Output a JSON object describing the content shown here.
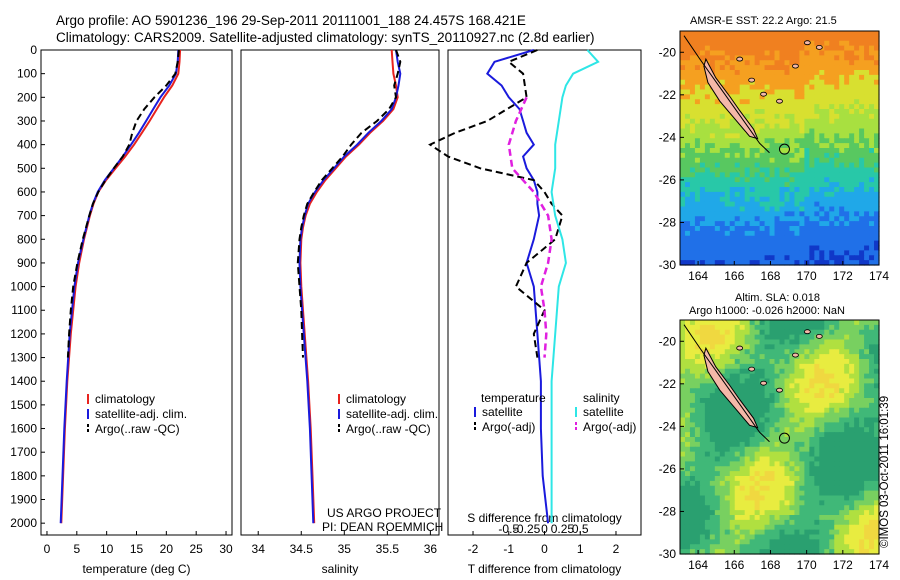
{
  "title": {
    "line1": "Argo profile: AO 5901236_196 29-Sep-2011 20111001_188 24.457S 168.421E",
    "line2": "Climatology: CARS2009. Satellite-adjusted climatology: synTS_20110927.nc (2.8d earlier)"
  },
  "footer": "©IMOS 03-Oct-2011 16:01:39",
  "colors": {
    "climatology": "#e8231e",
    "satellite": "#1a1adc",
    "argo": "#000000",
    "sat_sal": "#2ee6e6",
    "argo_sal": "#e020e0"
  },
  "chart_data": [
    {
      "type": "line",
      "name": "temperature-profile",
      "xlabel": "temperature (deg C)",
      "ylabel": "",
      "xlim": [
        -1,
        31
      ],
      "ylim": [
        0,
        2050
      ],
      "xticks": [
        "0",
        "5",
        "10",
        "15",
        "20",
        "25",
        "30"
      ],
      "yticks": [
        "0",
        "100",
        "200",
        "300",
        "400",
        "500",
        "600",
        "700",
        "800",
        "900",
        "1000",
        "1100",
        "1200",
        "1300",
        "1400",
        "1500",
        "1600",
        "1700",
        "1800",
        "1900",
        "2000"
      ],
      "legend": [
        "climatology",
        "satellite-adj. clim.",
        "Argo(..raw -QC)"
      ],
      "legend_position": "bottom-center",
      "series": [
        {
          "name": "climatology",
          "depth": [
            0,
            50,
            100,
            150,
            200,
            250,
            300,
            350,
            400,
            450,
            500,
            550,
            600,
            650,
            700,
            800,
            900,
            1000,
            1200,
            1400,
            1600,
            1800,
            2000
          ],
          "values": [
            22.3,
            22.2,
            22.0,
            21.0,
            19.6,
            18.4,
            17.2,
            15.9,
            14.6,
            13.1,
            11.5,
            9.9,
            8.6,
            7.8,
            7.2,
            6.2,
            5.4,
            4.8,
            4.0,
            3.4,
            3.0,
            2.7,
            2.4
          ]
        },
        {
          "name": "satellite-adj. clim.",
          "depth": [
            0,
            50,
            100,
            150,
            200,
            250,
            300,
            350,
            400,
            450,
            500,
            550,
            600,
            650,
            700,
            800,
            900,
            1000,
            1200,
            1400,
            1600,
            1800,
            2000
          ],
          "values": [
            22.0,
            21.9,
            21.6,
            20.5,
            19.0,
            17.8,
            16.6,
            15.4,
            14.1,
            12.7,
            11.2,
            9.7,
            8.5,
            7.7,
            7.1,
            6.1,
            5.2,
            4.6,
            3.8,
            3.3,
            2.9,
            2.6,
            2.3
          ]
        },
        {
          "name": "Argo(..raw -QC)",
          "depth": [
            0,
            50,
            100,
            150,
            200,
            250,
            300,
            350,
            400,
            450,
            500,
            550,
            600,
            650,
            700,
            800,
            900,
            1000,
            1100,
            1200,
            1300
          ],
          "values": [
            22.1,
            21.9,
            21.5,
            20.0,
            18.0,
            16.3,
            15.0,
            14.3,
            13.8,
            12.7,
            11.2,
            9.8,
            8.6,
            7.7,
            7.1,
            6.0,
            5.1,
            4.4,
            4.0,
            3.7,
            3.5
          ]
        }
      ],
      "annotations": []
    },
    {
      "type": "line",
      "name": "salinity-profile",
      "xlabel": "salinity",
      "xlim": [
        33.8,
        36.1
      ],
      "ylim": [
        0,
        2050
      ],
      "xticks": [
        "34",
        "34.5",
        "35",
        "35.5",
        "36"
      ],
      "legend": [
        "climatology",
        "satellite-adj. clim.",
        "Argo(..raw -QC)"
      ],
      "legend_position": "bottom-center",
      "series": [
        {
          "name": "climatology",
          "depth": [
            0,
            50,
            100,
            150,
            200,
            250,
            300,
            350,
            400,
            450,
            500,
            550,
            600,
            650,
            700,
            750,
            800,
            900,
            1000,
            1200,
            1400,
            1600,
            1800,
            2000
          ],
          "values": [
            35.55,
            35.56,
            35.57,
            35.6,
            35.62,
            35.57,
            35.45,
            35.3,
            35.17,
            35.02,
            34.9,
            34.78,
            34.68,
            34.6,
            34.55,
            34.52,
            34.5,
            34.49,
            34.5,
            34.54,
            34.58,
            34.61,
            34.63,
            34.65
          ]
        },
        {
          "name": "satellite-adj. clim.",
          "depth": [
            0,
            50,
            100,
            150,
            200,
            250,
            300,
            350,
            400,
            450,
            500,
            550,
            600,
            650,
            700,
            750,
            800,
            900,
            1000,
            1200,
            1400,
            1600,
            1800,
            2000
          ],
          "values": [
            35.6,
            35.62,
            35.65,
            35.63,
            35.6,
            35.55,
            35.43,
            35.28,
            35.15,
            35.0,
            34.88,
            34.76,
            34.66,
            34.58,
            34.54,
            34.51,
            34.49,
            34.48,
            34.49,
            34.53,
            34.57,
            34.6,
            34.62,
            34.64
          ]
        },
        {
          "name": "Argo(..raw -QC)",
          "depth": [
            0,
            50,
            100,
            150,
            200,
            250,
            300,
            350,
            400,
            450,
            500,
            550,
            600,
            650,
            700,
            750,
            800,
            900,
            1000,
            1100,
            1200,
            1300
          ],
          "values": [
            35.6,
            35.65,
            35.62,
            35.58,
            35.6,
            35.52,
            35.38,
            35.2,
            35.08,
            34.98,
            34.86,
            34.74,
            34.65,
            34.57,
            34.53,
            34.5,
            34.48,
            34.46,
            34.48,
            34.5,
            34.51,
            34.52
          ]
        }
      ],
      "annotations": [
        "US ARGO PROJECT",
        "PI: DEAN ROEMMICH"
      ]
    },
    {
      "type": "line",
      "name": "difference-from-climatology",
      "xlabel": "T difference from climatology",
      "xlabel_top": "S difference from climatology",
      "xlim": [
        -2.7,
        2.7
      ],
      "ylim": [
        0,
        2050
      ],
      "xticks": [
        "-2",
        "-1",
        "0",
        "1",
        "2"
      ],
      "xticks_top": [
        "-0.5",
        "-0.25",
        "0",
        "0.25",
        "0.5"
      ],
      "legend": [
        "temperature",
        "satellite",
        "Argo(-adj)",
        "salinity",
        "satellite",
        "Argo(-adj)"
      ],
      "legend_position": "bottom-center",
      "series": [
        {
          "name": "satellite",
          "depth": [
            0,
            50,
            100,
            150,
            200,
            250,
            300,
            350,
            400,
            450,
            500,
            550,
            600,
            650,
            700,
            800,
            900,
            1000,
            1200,
            1400,
            1600,
            1800,
            2000
          ],
          "values": [
            -0.3,
            -1.4,
            -1.6,
            -1.2,
            -1.0,
            -0.7,
            -0.6,
            -0.5,
            -0.3,
            -0.6,
            -0.5,
            -0.3,
            -0.2,
            -0.2,
            -0.15,
            -0.3,
            -0.5,
            -0.3,
            -0.2,
            -0.1,
            -0.1,
            -0.05,
            0.1
          ]
        },
        {
          "name": "Argo(-adj)",
          "depth": [
            0,
            50,
            100,
            200,
            300,
            350,
            400,
            450,
            500,
            550,
            600,
            650,
            700,
            800,
            900,
            1000,
            1100,
            1200,
            1300
          ],
          "values": [
            -0.2,
            -1.0,
            -0.6,
            -0.5,
            -1.6,
            -2.5,
            -3.2,
            -2.7,
            -1.8,
            -0.3,
            0.0,
            0.2,
            0.5,
            0.3,
            -0.5,
            -0.8,
            0.0,
            -0.3,
            -0.2
          ]
        },
        {
          "name": "salinity satellite",
          "depth": [
            0,
            50,
            100,
            150,
            200,
            300,
            400,
            500,
            600,
            700,
            800,
            900,
            1000,
            1200,
            1400,
            1600,
            1800,
            2000
          ],
          "values": [
            1.2,
            1.5,
            0.8,
            0.6,
            0.5,
            0.4,
            0.3,
            0.3,
            0.2,
            0.3,
            0.5,
            0.6,
            0.4,
            0.3,
            0.2,
            0.2,
            0.2,
            0.2
          ]
        },
        {
          "name": "salinity Argo(-adj)",
          "depth": [
            200,
            300,
            400,
            500,
            600,
            700,
            800,
            900,
            1000,
            1100,
            1200,
            1300
          ],
          "values": [
            -0.5,
            -0.8,
            -1.0,
            -0.9,
            -0.3,
            0.1,
            0.2,
            0.1,
            -0.1,
            0.0,
            0.05,
            0.0
          ]
        }
      ],
      "annotations": []
    }
  ],
  "maps": [
    {
      "name": "sst-map",
      "title": "AMSR-E SST: 22.2 Argo: 21.5",
      "xticks": [
        "164",
        "166",
        "168",
        "170",
        "172",
        "174"
      ],
      "yticks": [
        "-20",
        "-22",
        "-24",
        "-26",
        "-28",
        "-30"
      ]
    },
    {
      "name": "sla-map",
      "title_line1": "Altim. SLA: 0.018",
      "title_line2": "Argo h1000: -0.026 h2000: NaN",
      "xticks": [
        "164",
        "166",
        "168",
        "170",
        "172",
        "174"
      ],
      "yticks": [
        "-20",
        "-22",
        "-24",
        "-26",
        "-28",
        "-30"
      ]
    }
  ]
}
